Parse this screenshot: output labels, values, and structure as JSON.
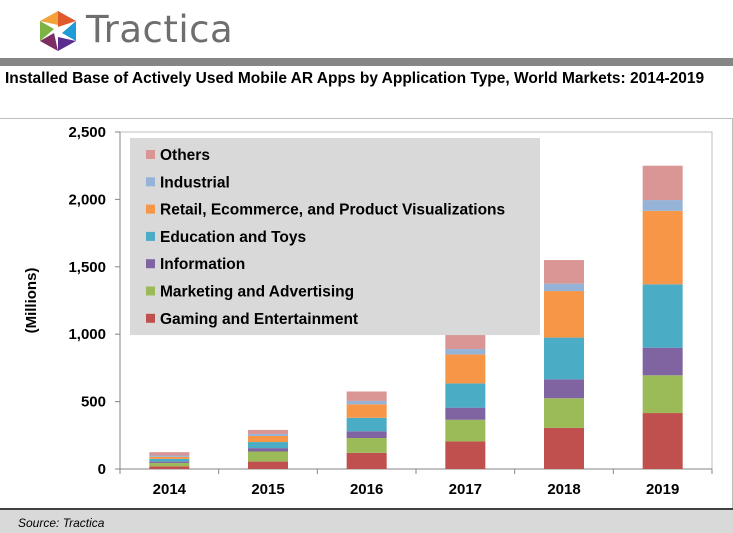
{
  "brand": {
    "name": "Tractica",
    "logo_colors": [
      "#e05a2b",
      "#7cb342",
      "#1f9bd7",
      "#5c2d91"
    ]
  },
  "title": "Installed Base of Actively Used Mobile AR Apps by Application Type, World Markets: 2014-2019",
  "source": "Source: Tractica",
  "chart_data": {
    "type": "bar",
    "stacked": true,
    "categories": [
      "2014",
      "2015",
      "2016",
      "2017",
      "2018",
      "2019"
    ],
    "ylabel": "(Millions)",
    "ylim": [
      0,
      2500
    ],
    "yticks": [
      "0",
      "500",
      "1,000",
      "1,500",
      "2,000",
      "2,500"
    ],
    "grid": false,
    "legend_position": "top-left",
    "series": [
      {
        "name": "Gaming and Entertainment",
        "color": "#c0504d",
        "values": [
          20,
          55,
          120,
          205,
          305,
          415
        ]
      },
      {
        "name": "Marketing and Advertising",
        "color": "#9bbb59",
        "values": [
          25,
          75,
          110,
          160,
          220,
          280
        ]
      },
      {
        "name": "Information",
        "color": "#8064a2",
        "values": [
          10,
          25,
          50,
          90,
          140,
          205
        ]
      },
      {
        "name": "Education and Toys",
        "color": "#4bacc6",
        "values": [
          20,
          45,
          100,
          180,
          310,
          470
        ]
      },
      {
        "name": "Retail, Ecommerce, and Product Visualizations",
        "color": "#f79646",
        "values": [
          15,
          45,
          100,
          215,
          345,
          545
        ]
      },
      {
        "name": "Industrial",
        "color": "#95b3d7",
        "values": [
          10,
          15,
          25,
          40,
          55,
          80
        ]
      },
      {
        "name": "Others",
        "color": "#d99694",
        "values": [
          25,
          30,
          70,
          110,
          175,
          255
        ]
      }
    ]
  }
}
